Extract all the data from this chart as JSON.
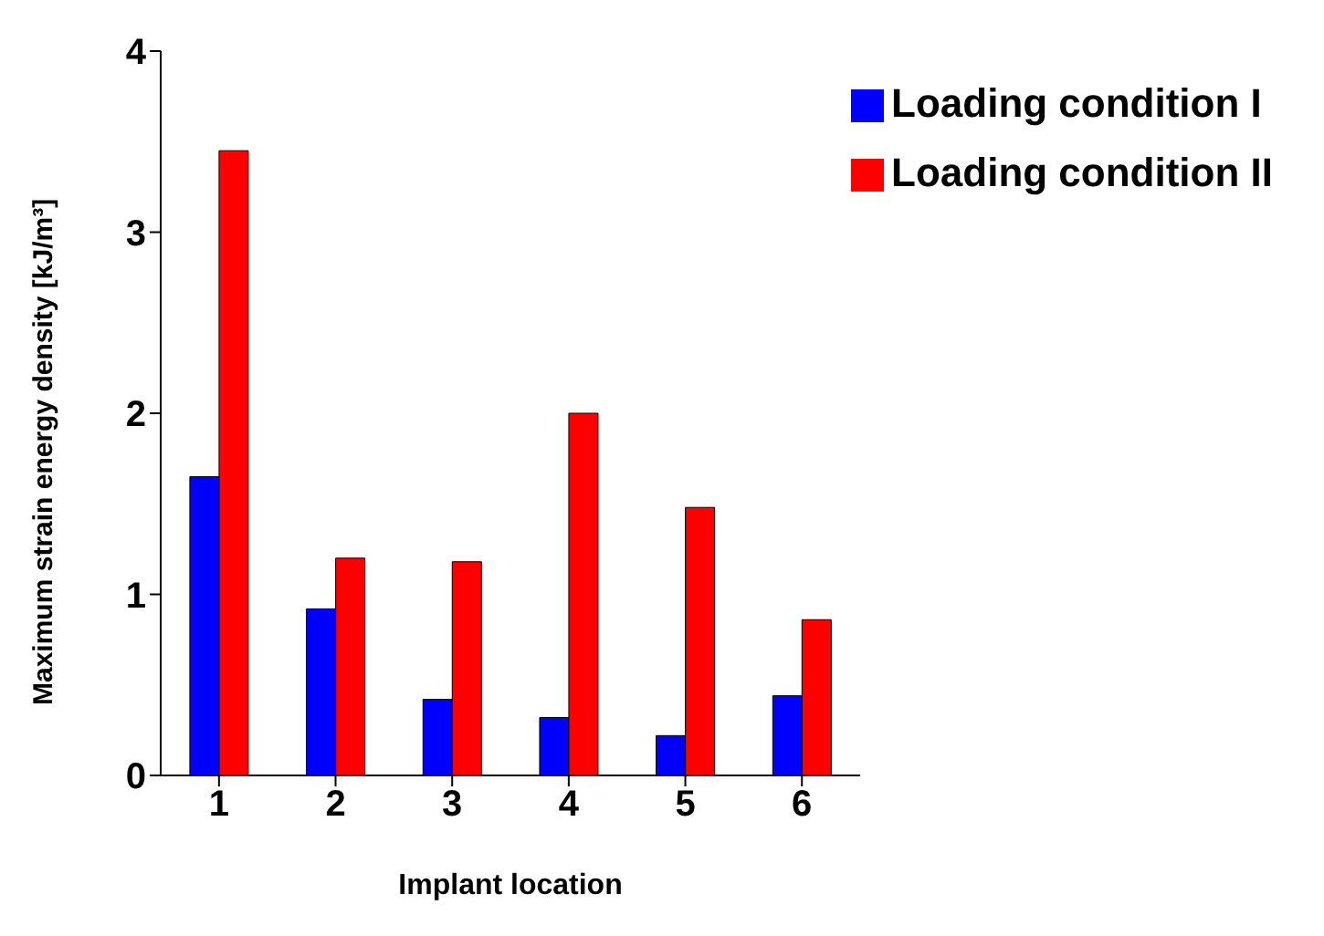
{
  "chart_data": {
    "type": "bar",
    "xlabel": "Implant location",
    "ylabel": "Maximum strain energy density [kJ/m³]",
    "categories": [
      "1",
      "2",
      "3",
      "4",
      "5",
      "6"
    ],
    "series": [
      {
        "name": "Loading condition I",
        "color": "#0000ff",
        "values": [
          1.65,
          0.92,
          0.42,
          0.32,
          0.22,
          0.44
        ]
      },
      {
        "name": "Loading condition II",
        "color": "#ff0000",
        "values": [
          3.45,
          1.2,
          1.18,
          2.0,
          1.48,
          0.86
        ]
      }
    ],
    "ylim": [
      0,
      4
    ],
    "yticks": [
      0,
      1,
      2,
      3,
      4
    ],
    "grid": false,
    "legend": "top right"
  }
}
